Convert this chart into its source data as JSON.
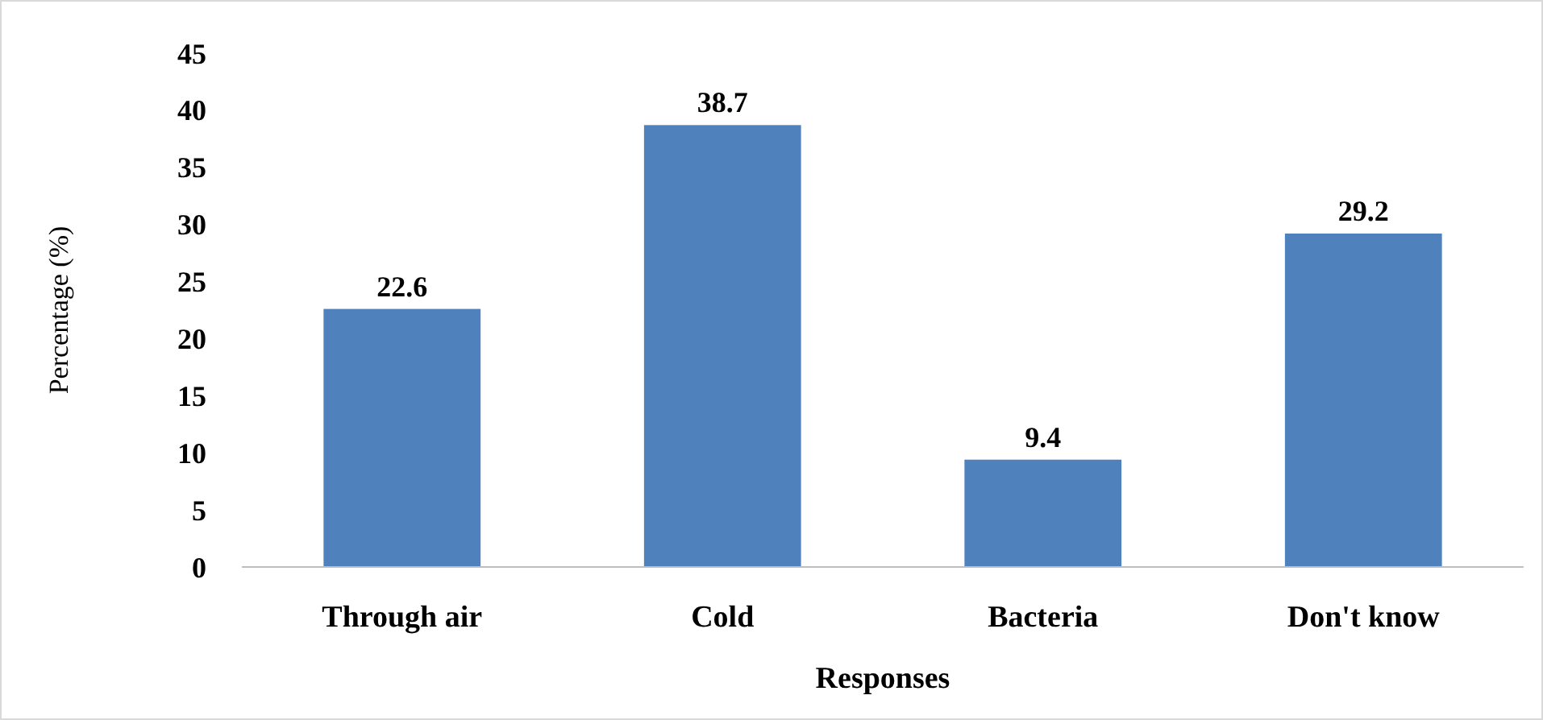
{
  "chart_data": {
    "type": "bar",
    "xlabel": "Responses",
    "ylabel": "Percentage (%)",
    "categories": [
      "Through air",
      "Cold",
      "Bacteria",
      "Don't know"
    ],
    "values": [
      22.6,
      38.7,
      9.4,
      29.2
    ],
    "color": "#4f81bd",
    "ylim": [
      0,
      45
    ],
    "yticks": [
      0,
      5,
      10,
      15,
      20,
      25,
      30,
      35,
      40,
      45
    ],
    "data_labels": true
  }
}
